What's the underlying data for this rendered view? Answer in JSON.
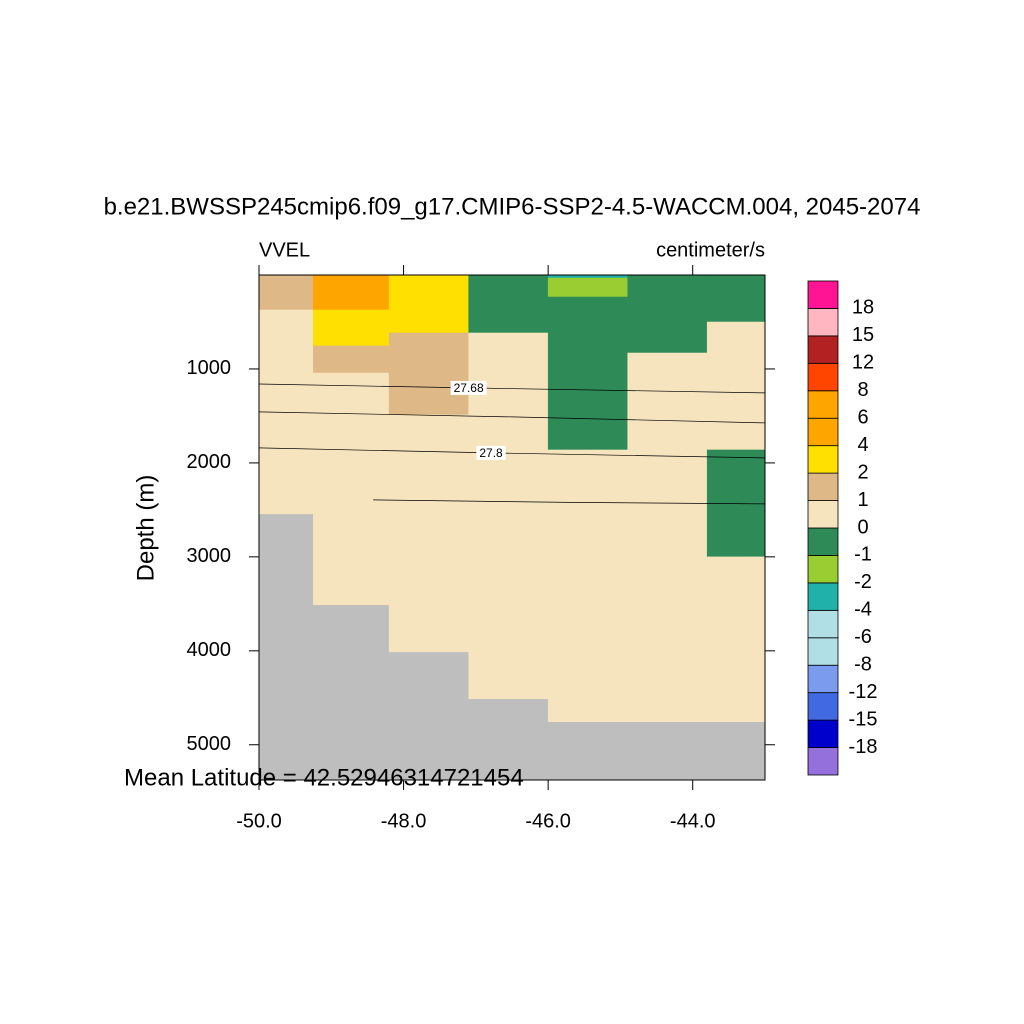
{
  "chart_data": {
    "type": "section",
    "title": "b.e21.BWSSP245cmip6.f09_g17.CMIP6-SSP2-4.5-WACCM.004, 2045-2074",
    "left_label": "VVEL",
    "right_label": "centimeter/s",
    "ylabel": "Depth (m)",
    "footer": "Mean Latitude = 42.52946314721454",
    "xlim": [
      -50,
      -43
    ],
    "xticks": [
      {
        "value": -50,
        "label": "-50.0"
      },
      {
        "value": -48,
        "label": "-48.0"
      },
      {
        "value": -46,
        "label": "-46.0"
      },
      {
        "value": -44,
        "label": "-44.0"
      }
    ],
    "ylim": [
      0,
      5375
    ],
    "y_inverted": true,
    "yticks": [
      1000,
      2000,
      3000,
      4000,
      5000
    ],
    "land_color": "#bebebe",
    "colorbar": {
      "levels": [
        -18,
        -15,
        -12,
        -8,
        -6,
        -4,
        -2,
        -1,
        0,
        1,
        2,
        4,
        6,
        8,
        12,
        15,
        18
      ],
      "colors": [
        "#9370db",
        "#0000cd",
        "#4169e1",
        "#7b9bef",
        "#b0e0e6",
        "#b0e0e6",
        "#20b2aa",
        "#9acd32",
        "#2e8b57",
        "#f5e4bd",
        "#deb887",
        "#ffe000",
        "#ffa500",
        "#ffa500",
        "#ff4500",
        "#b22222",
        "#ffb6c1",
        "#ff1493"
      ]
    },
    "cells": [
      {
        "lon": [
          -50,
          -49.25
        ],
        "depth": [
          0,
          372
        ],
        "value": 1.5
      },
      {
        "lon": [
          -50,
          -49.25
        ],
        "depth": [
          372,
          2543
        ],
        "value": 0.5
      },
      {
        "lon": [
          -49.25,
          -48.2
        ],
        "depth": [
          0,
          372
        ],
        "value": 5
      },
      {
        "lon": [
          -49.25,
          -48.2
        ],
        "depth": [
          372,
          755
        ],
        "value": 3
      },
      {
        "lon": [
          -49.25,
          -48.2
        ],
        "depth": [
          755,
          1043
        ],
        "value": 1.5
      },
      {
        "lon": [
          -49.25,
          -48.2
        ],
        "depth": [
          1043,
          3511
        ],
        "value": 0.5
      },
      {
        "lon": [
          -48.2,
          -47.1
        ],
        "depth": [
          0,
          617
        ],
        "value": 3
      },
      {
        "lon": [
          -48.2,
          -47.1
        ],
        "depth": [
          617,
          1489
        ],
        "value": 1.5
      },
      {
        "lon": [
          -48.2,
          -47.1
        ],
        "depth": [
          1489,
          4011
        ],
        "value": 0.5
      },
      {
        "lon": [
          -47.1,
          -46
        ],
        "depth": [
          0,
          617
        ],
        "value": -0.5
      },
      {
        "lon": [
          -47.1,
          -46
        ],
        "depth": [
          617,
          4511
        ],
        "value": 0.5
      },
      {
        "lon": [
          -46,
          -44.9
        ],
        "depth": [
          0,
          32
        ],
        "value": -3
      },
      {
        "lon": [
          -46,
          -44.9
        ],
        "depth": [
          32,
          234
        ],
        "value": -1.5
      },
      {
        "lon": [
          -46,
          -44.9
        ],
        "depth": [
          234,
          1862
        ],
        "value": -0.5
      },
      {
        "lon": [
          -46,
          -44.9
        ],
        "depth": [
          1862,
          4755
        ],
        "value": 0.5
      },
      {
        "lon": [
          -44.9,
          -43.8
        ],
        "depth": [
          0,
          830
        ],
        "value": -0.5
      },
      {
        "lon": [
          -44.9,
          -43.8
        ],
        "depth": [
          830,
          4755
        ],
        "value": 0.5
      },
      {
        "lon": [
          -43.8,
          -43
        ],
        "depth": [
          0,
          500
        ],
        "value": -0.5
      },
      {
        "lon": [
          -43.8,
          -43
        ],
        "depth": [
          500,
          1862
        ],
        "value": 0.5
      },
      {
        "lon": [
          -43.8,
          -43
        ],
        "depth": [
          1862,
          3000
        ],
        "value": -0.5
      },
      {
        "lon": [
          -43.8,
          -43
        ],
        "depth": [
          3000,
          4755
        ],
        "value": 0.5
      }
    ],
    "contours": [
      {
        "level": 27.68,
        "lon": [
          -50,
          -47.1,
          -43
        ],
        "depth": [
          1160,
          1202,
          1255
        ]
      },
      {
        "lon": [
          -50,
          -46.5,
          -43
        ],
        "depth": [
          1457,
          1510,
          1574
        ]
      },
      {
        "level": 27.8,
        "lon": [
          -50,
          -46.79,
          -43
        ],
        "depth": [
          1840,
          1894,
          1947
        ]
      },
      {
        "lon": [
          -48.42,
          -45.7,
          -43
        ],
        "depth": [
          2394,
          2420,
          2436
        ]
      }
    ]
  }
}
